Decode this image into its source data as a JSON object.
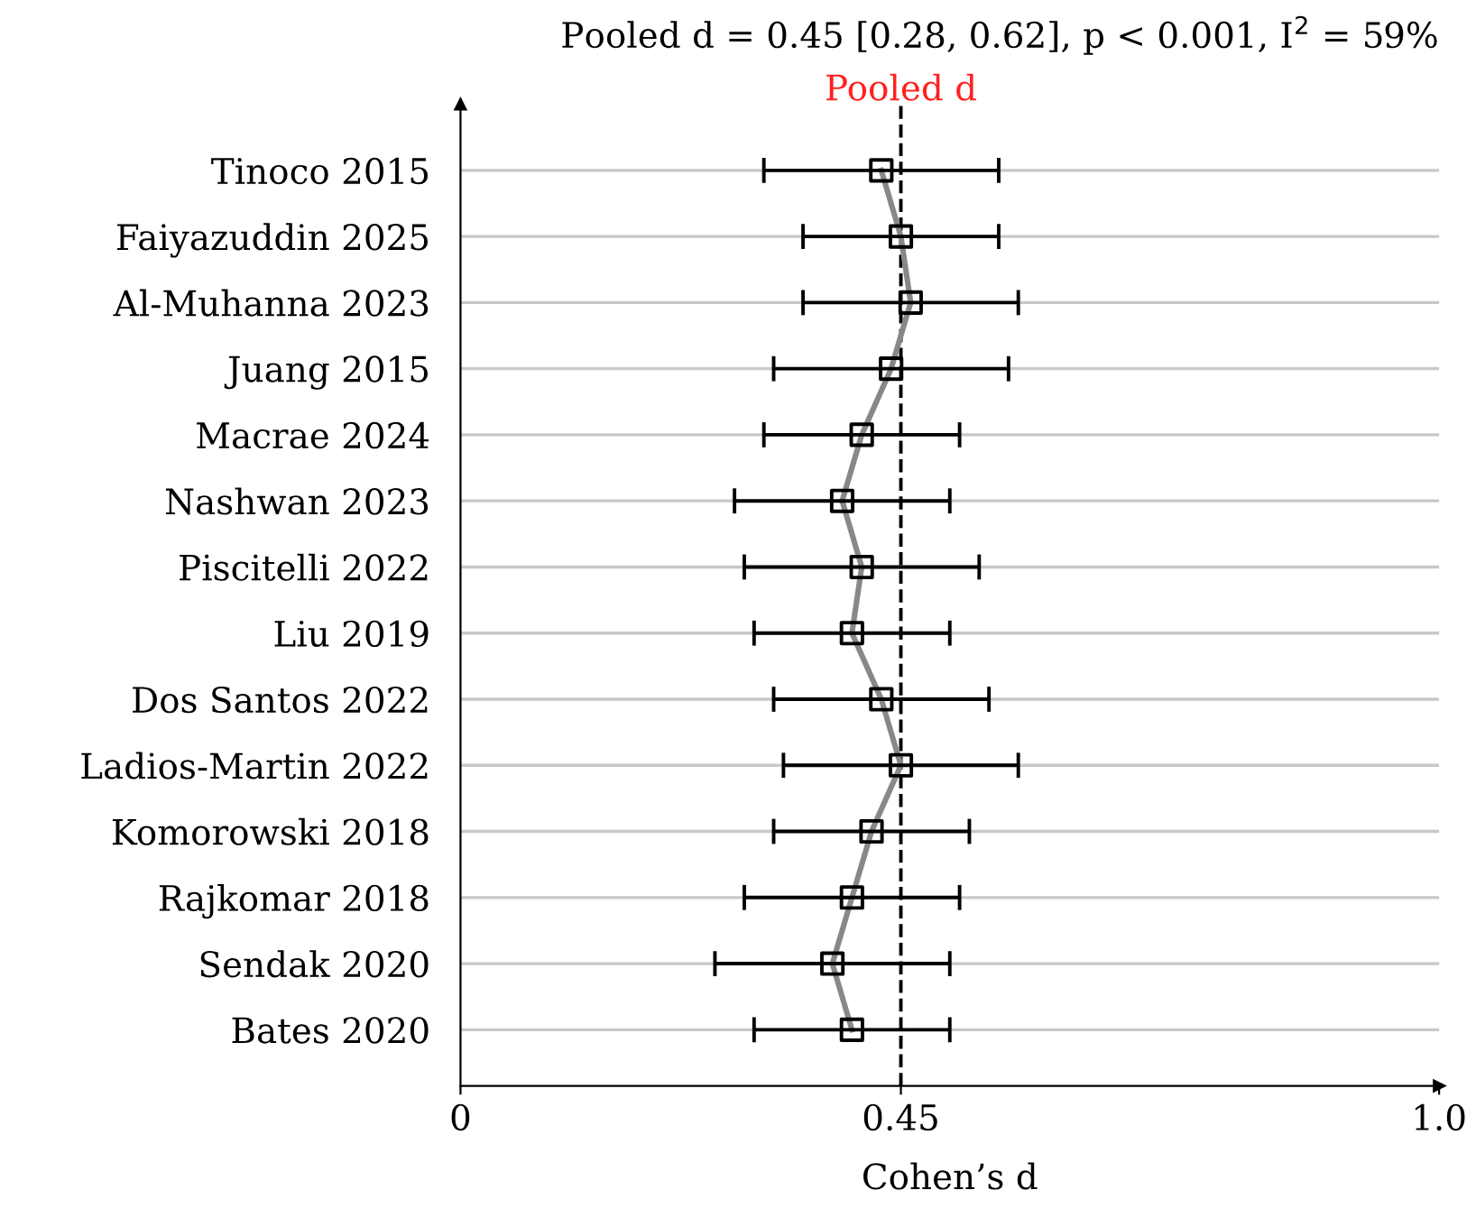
{
  "chart_data": {
    "type": "line",
    "orientation": "horizontal",
    "title": "Pooled d = 0.45 [0.28, 0.62], p < 0.001, I$^{2}$ = 59%",
    "xlabel": "Cohen’s d",
    "categories": [
      "Tinoco 2015",
      "Faiyazuddin 2025",
      "Al-Muhanna 2023",
      "Juang 2015",
      "Macrae 2024",
      "Nashwan 2023",
      "Piscitelli 2022",
      "Liu 2019",
      "Dos Santos 2022",
      "Ladios-Martin 2022",
      "Komorowski 2018",
      "Rajkomar 2018",
      "Sendak 2020",
      "Bates 2020"
    ],
    "series": [
      {
        "color": "#000000",
        "values": [
          0.43,
          0.45,
          0.46,
          0.44,
          0.41,
          0.39,
          0.41,
          0.4,
          0.43,
          0.45,
          0.42,
          0.4,
          0.38,
          0.4
        ],
        "errors": [
          [
            0.31,
            0.55
          ],
          [
            0.35,
            0.55
          ],
          [
            0.35,
            0.57
          ],
          [
            0.32,
            0.56
          ],
          [
            0.31,
            0.51
          ],
          [
            0.28,
            0.5
          ],
          [
            0.29,
            0.53
          ],
          [
            0.3,
            0.5
          ],
          [
            0.32,
            0.54
          ],
          [
            0.33,
            0.57
          ],
          [
            0.32,
            0.52
          ],
          [
            0.29,
            0.51
          ],
          [
            0.26,
            0.5
          ],
          [
            0.3,
            0.5
          ]
        ]
      }
    ],
    "xlim": [
      0,
      1.0
    ],
    "xticks": [
      0,
      0.45,
      {
        "value": 1.0,
        "label": "1.0"
      }
    ],
    "ref_lines": [
      {
        "axis": "x",
        "value": 0.45,
        "label": "Pooled d",
        "color": "#000000",
        "line_style": "dashed"
      }
    ],
    "grid": "y",
    "marker": "square",
    "line_style": "solid",
    "legend": false
  }
}
